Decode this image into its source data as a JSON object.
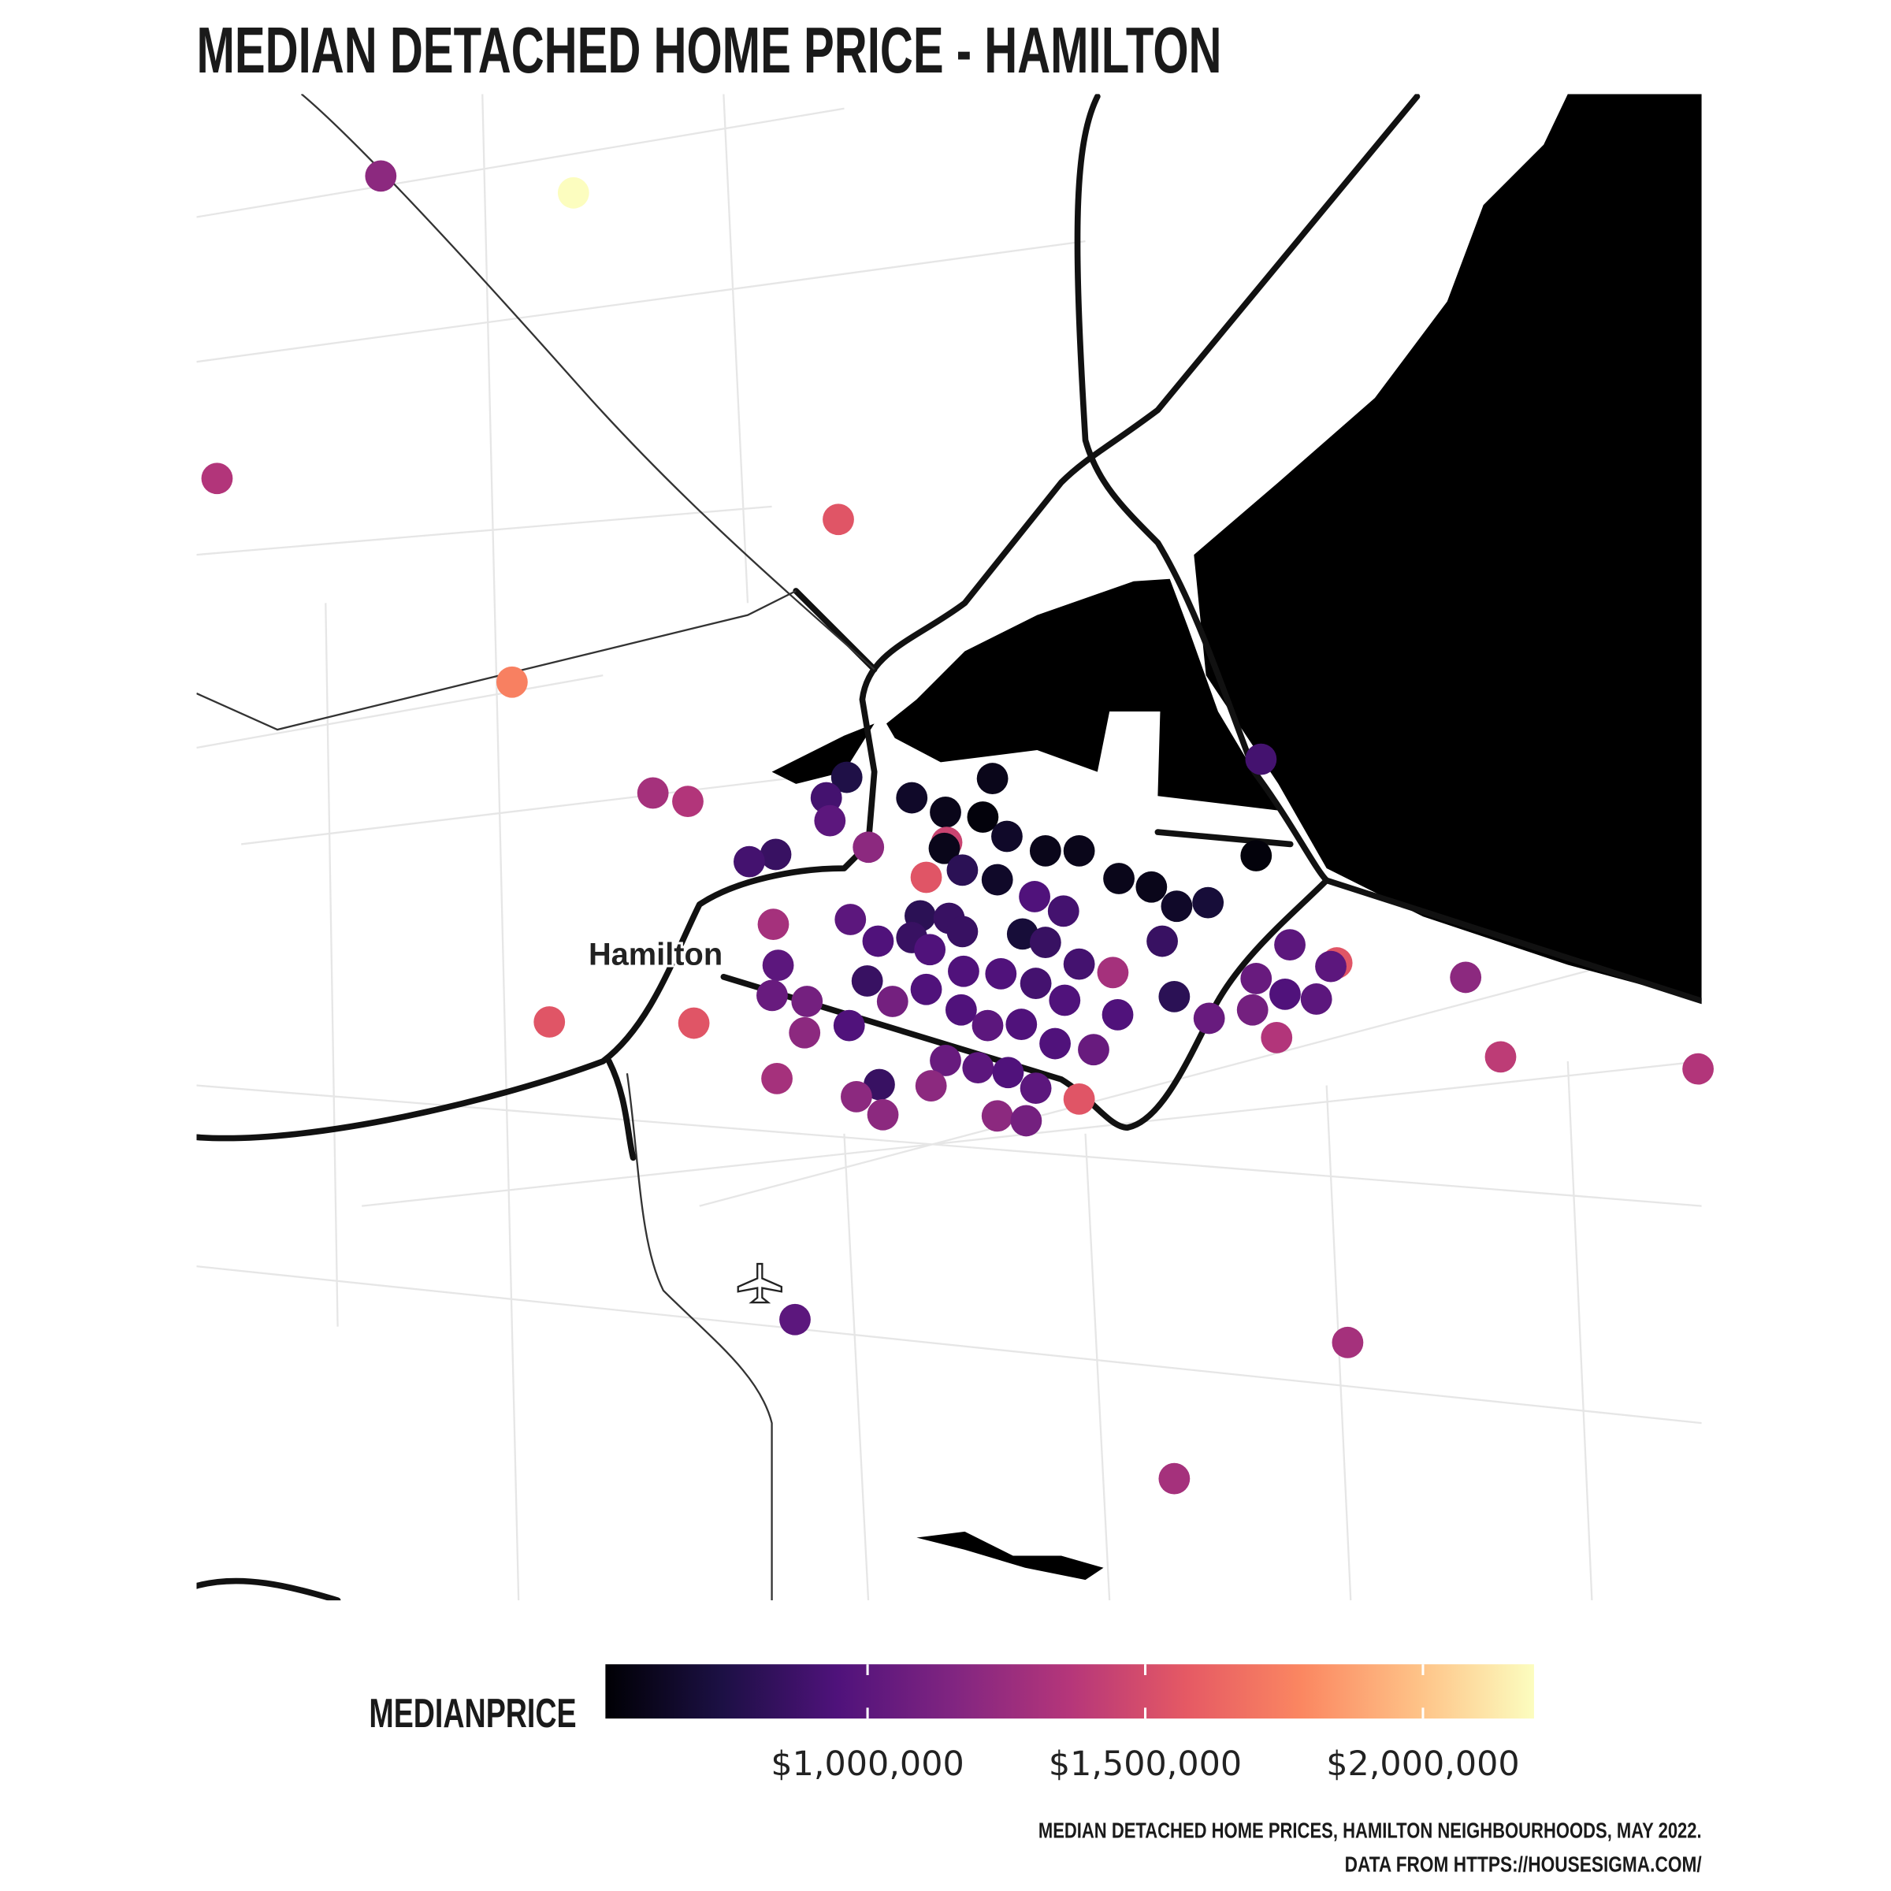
{
  "chart_data": {
    "type": "scatter",
    "title": "MEDIAN DETACHED HOME PRICE - HAMILTON",
    "place_label": "Hamilton",
    "legend_title": "MEDIANPRICE",
    "caption": [
      "MEDIAN DETACHED HOME PRICES, HAMILTON NEIGHBOURHOODS, MAY 2022.",
      "DATA FROM HTTPS://HOUSESIGMA.COM/"
    ],
    "xlim": [
      -80.0,
      -79.75
    ],
    "ylim": [
      43.15,
      43.4
    ],
    "color_scale": {
      "lim": [
        528000,
        2200000
      ],
      "ticks": [
        {
          "value": 1000000,
          "label": "$1,000,000"
        },
        {
          "value": 1500000,
          "label": "$1,500,000"
        },
        {
          "value": 2000000,
          "label": "$2,000,000"
        }
      ],
      "colors": [
        "#000004",
        "#1c1044",
        "#4f127b",
        "#812581",
        "#b5367a",
        "#e55964",
        "#fb8761",
        "#fec287",
        "#fcfdbf"
      ]
    },
    "x": [
      -79.9694,
      -79.9374,
      -79.9966,
      -79.8934,
      -79.9476,
      -79.8232,
      -79.9242,
      -79.9184,
      -79.892,
      -79.8954,
      -79.8948,
      -79.8812,
      -79.8756,
      -79.8678,
      -79.8694,
      -79.8754,
      -79.8758,
      -79.8654,
      -79.8884,
      -79.9038,
      -79.9082,
      -79.8788,
      -79.8728,
      -79.867,
      -79.859,
      -79.8534,
      -79.8468,
      -79.8414,
      -79.8372,
      -79.832,
      -79.824,
      -79.8608,
      -79.856,
      -79.8798,
      -79.875,
      -79.8914,
      -79.8812,
      -79.8728,
      -79.8628,
      -79.859,
      -79.8868,
      -79.8782,
      -79.8396,
      -79.9042,
      -79.8184,
      -79.8106,
      -79.8116,
      -79.7892,
      -79.8478,
      -79.8534,
      -79.8726,
      -79.8664,
      -79.8606,
      -79.8886,
      -79.8788,
      -79.9034,
      -79.9044,
      -79.8986,
      -79.8844,
      -79.873,
      -79.8558,
      -79.847,
      -79.8376,
      -79.824,
      -79.8192,
      -79.814,
      -79.8246,
      -79.8318,
      -79.8686,
      -79.863,
      -79.9414,
      -79.9174,
      -79.899,
      -79.8916,
      -79.8206,
      -79.8574,
      -79.851,
      -79.8756,
      -79.8702,
      -79.8652,
      -79.9036,
      -79.8866,
      -79.878,
      -79.8606,
      -79.8904,
      -79.886,
      -79.8534,
      -79.867,
      -79.8622,
      -79.7834,
      -79.7506,
      -79.9006,
      -79.8088,
      -79.8376
    ],
    "y": [
      43.3864,
      43.3836,
      43.3362,
      43.3294,
      43.3024,
      43.2896,
      43.284,
      43.2826,
      43.2866,
      43.2832,
      43.2794,
      43.2832,
      43.2808,
      43.2864,
      43.28,
      43.2758,
      43.2748,
      43.2768,
      43.275,
      43.2738,
      43.2726,
      43.27,
      43.2712,
      43.2696,
      43.2744,
      43.2744,
      43.2698,
      43.2684,
      43.2652,
      43.2658,
      43.2736,
      43.2668,
      43.2644,
      43.2636,
      43.2632,
      43.263,
      43.26,
      43.261,
      43.2606,
      43.2592,
      43.2594,
      43.258,
      43.2594,
      43.2622,
      43.2588,
      43.2558,
      43.2552,
      43.2534,
      43.2542,
      43.2556,
      43.2544,
      43.254,
      43.2524,
      43.2528,
      43.2514,
      43.2554,
      43.2504,
      43.2494,
      43.2494,
      43.248,
      43.2496,
      43.2472,
      43.2502,
      43.2532,
      43.2506,
      43.2498,
      43.248,
      43.2466,
      43.2454,
      43.2456,
      43.246,
      43.2458,
      43.2442,
      43.2454,
      43.2434,
      43.2424,
      43.2414,
      43.2396,
      43.2384,
      43.2376,
      43.2366,
      43.2356,
      43.2354,
      43.235,
      43.2336,
      43.2306,
      43.2332,
      43.2304,
      43.2296,
      43.2402,
      43.2382,
      43.1966,
      43.1928,
      43.1702
    ],
    "values": [
      1200000,
      2200000,
      1350000,
      1550000,
      1750000,
      900000,
      1300000,
      1350000,
      750000,
      900000,
      1000000,
      650000,
      600000,
      600000,
      550000,
      1450000,
      600000,
      650000,
      1200000,
      850000,
      900000,
      1550000,
      800000,
      650000,
      600000,
      600000,
      600000,
      600000,
      650000,
      700000,
      550000,
      950000,
      900000,
      800000,
      850000,
      1000000,
      850000,
      850000,
      700000,
      850000,
      950000,
      950000,
      850000,
      1300000,
      1000000,
      1550000,
      1000000,
      1200000,
      1300000,
      900000,
      950000,
      950000,
      900000,
      850000,
      950000,
      1000000,
      1050000,
      1100000,
      1100000,
      950000,
      950000,
      950000,
      800000,
      1050000,
      950000,
      1000000,
      1100000,
      1050000,
      1000000,
      950000,
      1550000,
      1550000,
      1200000,
      950000,
      1350000,
      950000,
      1050000,
      1050000,
      1000000,
      950000,
      1300000,
      850000,
      1200000,
      1000000,
      1200000,
      1200000,
      1550000,
      1200000,
      1100000,
      1400000,
      1350000,
      1000000,
      1300000,
      1300000
    ]
  }
}
